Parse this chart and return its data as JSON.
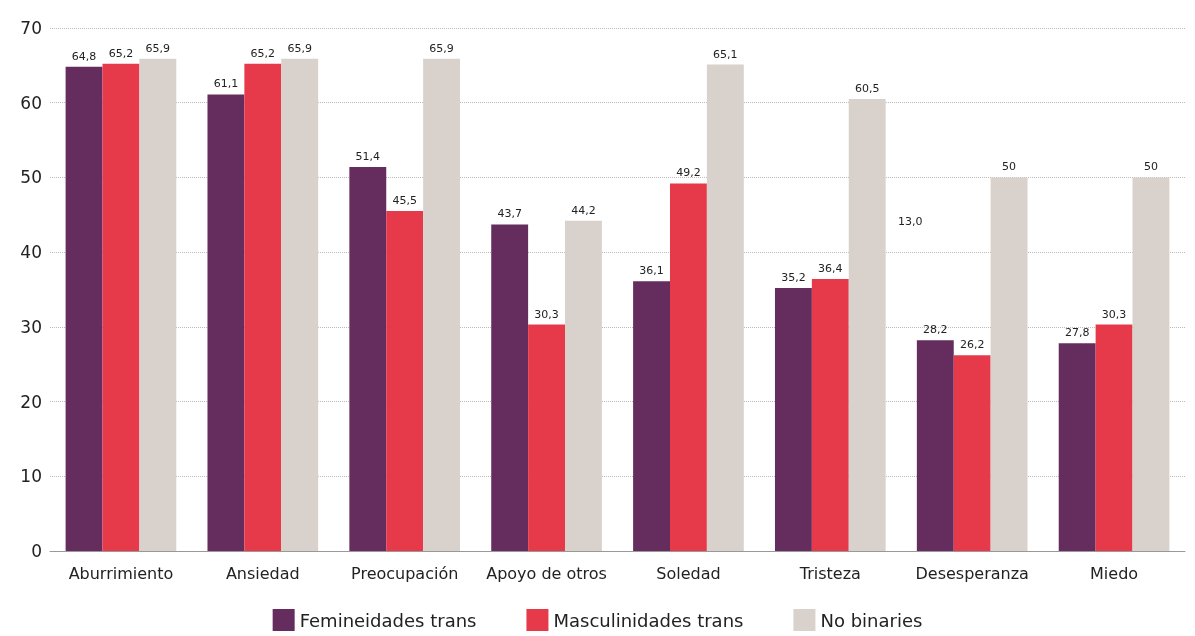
{
  "chart_data": {
    "type": "bar",
    "categories": [
      "Aburrimiento",
      "Ansiedad",
      "Preocupación",
      "Apoyo de otros",
      "Soledad",
      "Tristeza",
      "Desesperanza",
      "Miedo"
    ],
    "series": [
      {
        "name": "Femineidades trans",
        "color": "#652c5e",
        "values": [
          64.8,
          61.1,
          51.4,
          43.7,
          36.1,
          35.2,
          28.2,
          27.8
        ],
        "value_labels": [
          "64,8",
          "61,1",
          "51,4",
          "43,7",
          "36,1",
          "35,2",
          "28,2",
          "27,8"
        ]
      },
      {
        "name": "Masculinidades trans",
        "color": "#e63a4b",
        "values": [
          65.2,
          65.2,
          45.5,
          30.3,
          49.2,
          36.4,
          26.2,
          30.3
        ],
        "value_labels": [
          "65,2",
          "65,2",
          "45,5",
          "30,3",
          "49,2",
          "36,4",
          "26,2",
          "30,3"
        ]
      },
      {
        "name": "No binaries",
        "color": "#d9d1cc",
        "values": [
          65.9,
          65.9,
          65.9,
          44.2,
          65.1,
          60.5,
          50,
          50
        ],
        "value_labels": [
          "65,9",
          "65,9",
          "65,9",
          "44,2",
          "65,1",
          "60,5",
          "50",
          "50"
        ]
      }
    ],
    "ylim": [
      0,
      70
    ],
    "yticks": [
      0,
      10,
      20,
      30,
      40,
      50,
      60,
      70
    ],
    "grid": "y",
    "legend": "bottom",
    "annotations": [
      "13,0"
    ]
  }
}
